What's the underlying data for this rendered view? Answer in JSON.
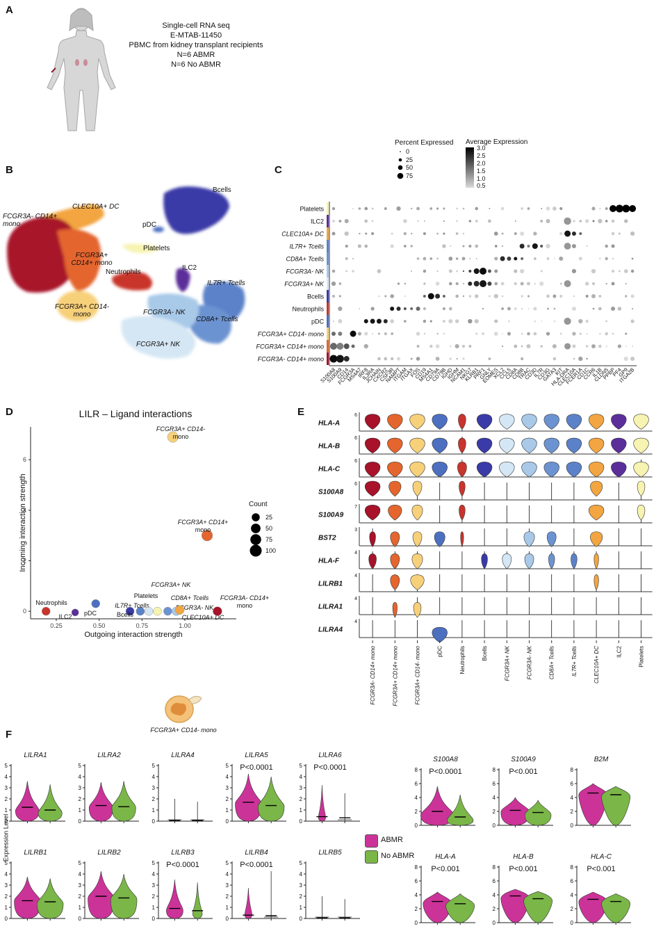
{
  "panelA": {
    "label": "A",
    "lines": [
      "Single-cell RNA seq",
      "E-MTAB-11450",
      "PBMC from kidney transplant recipients",
      "N=6 ABMR",
      "N=6 No ABMR"
    ]
  },
  "panelB": {
    "label": "B",
    "clusters": [
      {
        "label": "Bcells",
        "color": "#3a3aa8"
      },
      {
        "label": "CLEC10A+ DC",
        "color": "#f2a541"
      },
      {
        "label": "FCGR3A- CD14+ mono",
        "color": "#a8122a"
      },
      {
        "label": "pDC",
        "color": "#4c6fc0"
      },
      {
        "label": "Platelets",
        "color": "#f7f3b0"
      },
      {
        "label": "FCGR3A+ CD14+ mono",
        "color": "#e4652d"
      },
      {
        "label": "Neutrophils",
        "color": "#c9342c"
      },
      {
        "label": "ILC2",
        "color": "#5b2e9a"
      },
      {
        "label": "IL7R+ Tcells",
        "color": "#5b82c9"
      },
      {
        "label": "FCGR3A+ CD14- mono",
        "color": "#f7d07a"
      },
      {
        "label": "FCGR3A- NK",
        "color": "#a8c9e8"
      },
      {
        "label": "CD8A+ Tcells",
        "color": "#6c93d1"
      },
      {
        "label": "FCGR3A+ NK",
        "color": "#d5e7f4"
      }
    ]
  },
  "panelC": {
    "label": "C",
    "legend_size_title": "Percent Expressed",
    "legend_size_values": [
      "0",
      "25",
      "50",
      "75"
    ],
    "legend_color_title": "Average Expression",
    "legend_color_values": [
      "3.0",
      "2.5",
      "2.0",
      "1.5",
      "1.0",
      "0.5"
    ],
    "rows": [
      "Platelets",
      "ILC2",
      "CLEC10A+ DC",
      "IL7R+ Tcells",
      "CD8A+ Tcells",
      "FCGR3A- NK",
      "FCGR3A+ NK",
      "Bcells",
      "Neutrophils",
      "pDC",
      "FCGR3A+ CD14- mono",
      "FCGR3A+ CD14+ mono",
      "FCGR3A- CD14+ mono"
    ],
    "genes": [
      "S100A8",
      "S100A9",
      "CD14",
      "FCGR3A",
      "MS4A7",
      "IRF8",
      "IL3RA",
      "JCHAIN",
      "CXCR2",
      "CSF3R",
      "NAMPT",
      "ITGAM",
      "ITGAX",
      "FOS",
      "CD19",
      "MS4A1",
      "CD79A",
      "CD79B",
      "IGHD",
      "IGHM",
      "NCAM1",
      "NKG7",
      "KLRB1",
      "PRF1",
      "GNLY",
      "EOMES",
      "XCL2",
      "CCL5",
      "CD8A",
      "CD8B",
      "TRAC",
      "CD3D",
      "IL7R",
      "CD3G",
      "GATA3",
      "KIT",
      "HLA-DRA",
      "CLEC10A",
      "FCER1A",
      "CD1C",
      "CCR6",
      "IL1B",
      "CLDN5",
      "PPBP",
      "PF4",
      "GP9",
      "ITGA2B"
    ]
  },
  "panelD": {
    "label": "D",
    "chart_data": {
      "type": "scatter",
      "title": "LILR – Ligand interactions",
      "xlabel": "Outgoing interaction strength",
      "ylabel": "Incoming interaction strength",
      "xlim": [
        0.1,
        1.3
      ],
      "ylim": [
        -0.3,
        7.3
      ],
      "xticks": [
        "0.25",
        "0.50",
        "0.75",
        "1.00"
      ],
      "yticks": [
        "0",
        "2",
        "4",
        "6"
      ],
      "legend_title": "Count",
      "legend_values": [
        "25",
        "50",
        "75",
        "100"
      ],
      "points": [
        {
          "label": "FCGR3A+ CD14- mono",
          "x": 0.93,
          "y": 6.9,
          "count": 75,
          "color": "#f7d07a"
        },
        {
          "label": "FCGR3A+ CD14+ mono",
          "x": 1.13,
          "y": 3.0,
          "count": 80,
          "color": "#e4652d"
        },
        {
          "label": "Neutrophils",
          "x": 0.19,
          "y": 0.0,
          "count": 30,
          "color": "#c9342c"
        },
        {
          "label": "ILC2",
          "x": 0.36,
          "y": -0.05,
          "count": 15,
          "color": "#5b2e9a"
        },
        {
          "label": "pDC",
          "x": 0.48,
          "y": 0.3,
          "count": 30,
          "color": "#4c6fc0"
        },
        {
          "label": "Bcells",
          "x": 0.68,
          "y": 0.0,
          "count": 30,
          "color": "#3a3aa8"
        },
        {
          "label": "IL7R+ Tcells",
          "x": 0.74,
          "y": 0.0,
          "count": 30,
          "color": "#5b82c9"
        },
        {
          "label": "FCGR3A+ NK",
          "x": 0.79,
          "y": 0.0,
          "count": 30,
          "color": "#d5e7f4"
        },
        {
          "label": "Platelets",
          "x": 0.84,
          "y": 0.0,
          "count": 30,
          "color": "#f7f3b0"
        },
        {
          "label": "CD8A+ Tcells",
          "x": 0.9,
          "y": 0.0,
          "count": 30,
          "color": "#6c93d1"
        },
        {
          "label": "FCGR3A- NK",
          "x": 0.95,
          "y": 0.0,
          "count": 35,
          "color": "#a8c9e8"
        },
        {
          "label": "CLEC10A+ DC",
          "x": 0.97,
          "y": 0.05,
          "count": 40,
          "color": "#f2a541"
        },
        {
          "label": "FCGR3A- CD14+ mono",
          "x": 1.19,
          "y": 0.0,
          "count": 40,
          "color": "#a8122a"
        }
      ]
    }
  },
  "panelE": {
    "label": "E",
    "genes": [
      "HLA-A",
      "HLA-B",
      "HLA-C",
      "S100A8",
      "S100A9",
      "BST2",
      "HLA-F",
      "LILRB1",
      "LILRA1",
      "LILRA4"
    ],
    "ymax": [
      "6",
      "6",
      "6",
      "6",
      "7",
      "3",
      "4",
      "4",
      "4",
      "4"
    ],
    "ymin": "0",
    "columns": [
      "FCGR3A- CD14+ mono",
      "FCGR3A+ CD14+ mono",
      "FCGR3A+ CD14- mono",
      "pDC",
      "Neutrophils",
      "Bcells",
      "FCGR3A+ NK",
      "FCGR3A- NK",
      "CD8A+ Tcells",
      "IL7R+ Tcells",
      "CLEC10A+ DC",
      "ILC2",
      "Platelets"
    ],
    "icon_label": "FCGR3A+ CD14- mono"
  },
  "panelF": {
    "label": "F",
    "y_axis_title": "Expression Level",
    "legend": [
      {
        "label": "ABMR",
        "color": "#cc3399"
      },
      {
        "label": "No ABMR",
        "color": "#7ab648"
      }
    ],
    "left_genes": [
      {
        "name": "LILRA1",
        "p": ""
      },
      {
        "name": "LILRA2",
        "p": ""
      },
      {
        "name": "LILRA4",
        "p": ""
      },
      {
        "name": "LILRA5",
        "p": "P<0.0001"
      },
      {
        "name": "LILRA6",
        "p": "P<0.0001"
      },
      {
        "name": "LILRB1",
        "p": ""
      },
      {
        "name": "LILRB2",
        "p": ""
      },
      {
        "name": "LILRB3",
        "p": "P<0.0001"
      },
      {
        "name": "LILRB4",
        "p": "P<0.0001"
      },
      {
        "name": "LILRB5",
        "p": ""
      }
    ],
    "right_genes": [
      {
        "name": "S100A8",
        "p": "P<0.0001"
      },
      {
        "name": "S100A9",
        "p": "P<0.001"
      },
      {
        "name": "B2M",
        "p": ""
      },
      {
        "name": "HLA-A",
        "p": "P<0.001"
      },
      {
        "name": "HLA-B",
        "p": "P<0.001"
      },
      {
        "name": "HLA-C",
        "p": "P<0.001"
      }
    ],
    "left_yticks": [
      "0",
      "1",
      "2",
      "3",
      "4",
      "5"
    ],
    "right_yticks": [
      "0",
      "2",
      "4",
      "6",
      "8"
    ]
  }
}
